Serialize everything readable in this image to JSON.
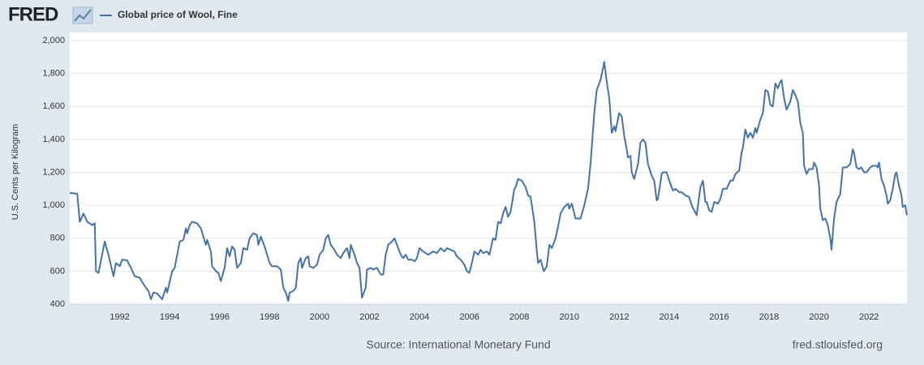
{
  "chart_data": {
    "type": "line",
    "logo": "FRED",
    "ylabel": "U.S. Cents per Kilogram",
    "source": "Source: International Monetary Fund",
    "credit": "fred.stlouisfed.org",
    "grid": true,
    "xlim": [
      1990,
      2023.52
    ],
    "ylim": [
      400,
      2000
    ],
    "xticks": [
      1992,
      1994,
      1996,
      1998,
      2000,
      2002,
      2004,
      2006,
      2008,
      2010,
      2012,
      2014,
      2016,
      2018,
      2020,
      2022
    ],
    "yticks": [
      400,
      600,
      800,
      {
        "value": 1000,
        "label": "1,000"
      },
      {
        "value": 1200,
        "label": "1,200"
      },
      {
        "value": 1400,
        "label": "1,400"
      },
      {
        "value": 1600,
        "label": "1,600"
      },
      {
        "value": 1800,
        "label": "1,800"
      },
      {
        "value": 2000,
        "label": "2,000"
      }
    ],
    "x": [
      1990.0,
      1990.3,
      1990.4,
      1990.55,
      1990.7,
      1990.9,
      1991.0,
      1991.05,
      1991.15,
      1991.4,
      1991.55,
      1991.75,
      1991.85,
      1992.0,
      1992.1,
      1992.3,
      1992.45,
      1992.6,
      1992.8,
      1993.0,
      1993.15,
      1993.25,
      1993.35,
      1993.5,
      1993.7,
      1993.85,
      1993.9,
      1994.1,
      1994.2,
      1994.3,
      1994.4,
      1994.55,
      1994.65,
      1994.7,
      1994.8,
      1994.9,
      1995.1,
      1995.25,
      1995.45,
      1995.5,
      1995.65,
      1995.7,
      1995.85,
      1995.95,
      1996.05,
      1996.2,
      1996.3,
      1996.4,
      1996.5,
      1996.6,
      1996.7,
      1996.85,
      1996.95,
      1997.1,
      1997.2,
      1997.35,
      1997.5,
      1997.55,
      1997.65,
      1997.8,
      1998.0,
      1998.1,
      1998.3,
      1998.45,
      1998.55,
      1998.65,
      1998.75,
      1998.8,
      1998.95,
      1999.05,
      1999.15,
      1999.25,
      1999.3,
      1999.45,
      1999.55,
      1999.6,
      1999.75,
      1999.9,
      2000.0,
      2000.15,
      2000.25,
      2000.35,
      2000.45,
      2000.6,
      2000.7,
      2000.85,
      2000.95,
      2001.1,
      2001.2,
      2001.25,
      2001.4,
      2001.5,
      2001.6,
      2001.7,
      2001.85,
      2001.9,
      2002.05,
      2002.15,
      2002.3,
      2002.45,
      2002.55,
      2002.65,
      2002.75,
      2002.9,
      2003.0,
      2003.1,
      2003.25,
      2003.35,
      2003.45,
      2003.55,
      2003.7,
      2003.8,
      2003.9,
      2004.0,
      2004.15,
      2004.35,
      2004.55,
      2004.7,
      2004.85,
      2005.0,
      2005.1,
      2005.25,
      2005.4,
      2005.5,
      2005.65,
      2005.8,
      2005.9,
      2006.0,
      2006.1,
      2006.2,
      2006.35,
      2006.45,
      2006.55,
      2006.7,
      2006.8,
      2006.95,
      2007.05,
      2007.15,
      2007.25,
      2007.35,
      2007.45,
      2007.55,
      2007.65,
      2007.8,
      2007.85,
      2007.95,
      2008.1,
      2008.25,
      2008.35,
      2008.45,
      2008.55,
      2008.6,
      2008.7,
      2008.75,
      2008.85,
      2008.98,
      2009.1,
      2009.2,
      2009.3,
      2009.45,
      2009.55,
      2009.65,
      2009.8,
      2009.95,
      2010.0,
      2010.1,
      2010.2,
      2010.25,
      2010.45,
      2010.6,
      2010.75,
      2010.85,
      2011.0,
      2011.1,
      2011.25,
      2011.4,
      2011.5,
      2011.6,
      2011.7,
      2011.8,
      2011.85,
      2012.0,
      2012.1,
      2012.2,
      2012.3,
      2012.35,
      2012.45,
      2012.5,
      2012.6,
      2012.75,
      2012.85,
      2012.95,
      2013.05,
      2013.15,
      2013.3,
      2013.4,
      2013.5,
      2013.55,
      2013.7,
      2013.75,
      2013.9,
      2014.0,
      2014.15,
      2014.25,
      2014.4,
      2014.5,
      2014.65,
      2014.8,
      2014.9,
      2015.0,
      2015.1,
      2015.25,
      2015.35,
      2015.45,
      2015.5,
      2015.6,
      2015.7,
      2015.8,
      2015.95,
      2016.05,
      2016.15,
      2016.3,
      2016.45,
      2016.55,
      2016.65,
      2016.8,
      2016.9,
      2016.95,
      2017.05,
      2017.15,
      2017.25,
      2017.35,
      2017.45,
      2017.5,
      2017.65,
      2017.75,
      2017.85,
      2017.95,
      2018.05,
      2018.15,
      2018.25,
      2018.35,
      2018.45,
      2018.5,
      2018.6,
      2018.7,
      2018.85,
      2018.95,
      2019.05,
      2019.15,
      2019.25,
      2019.35,
      2019.4,
      2019.5,
      2019.6,
      2019.75,
      2019.8,
      2019.9,
      2020.0,
      2020.05,
      2020.15,
      2020.25,
      2020.35,
      2020.45,
      2020.5,
      2020.6,
      2020.7,
      2020.85,
      2020.95,
      2021.1,
      2021.25,
      2021.35,
      2021.4,
      2021.5,
      2021.6,
      2021.7,
      2021.8,
      2021.9,
      2022.05,
      2022.15,
      2022.3,
      2022.35,
      2022.4,
      2022.5,
      2022.6,
      2022.7,
      2022.75,
      2022.85,
      2022.95,
      2023.05,
      2023.1,
      2023.2,
      2023.3,
      2023.35,
      2023.45,
      2023.52
    ],
    "series": [
      {
        "name": "Global price of Wool, Fine",
        "color": "#4572a7",
        "values": [
          1075,
          1070,
          900,
          950,
          900,
          880,
          890,
          600,
          590,
          780,
          700,
          570,
          650,
          630,
          670,
          665,
          620,
          570,
          560,
          510,
          480,
          430,
          470,
          465,
          430,
          500,
          470,
          600,
          620,
          700,
          780,
          790,
          860,
          830,
          880,
          900,
          890,
          860,
          760,
          790,
          720,
          630,
          600,
          590,
          540,
          620,
          740,
          690,
          750,
          730,
          620,
          650,
          740,
          730,
          800,
          830,
          820,
          760,
          810,
          750,
          650,
          630,
          630,
          610,
          500,
          470,
          420,
          470,
          480,
          500,
          650,
          680,
          620,
          680,
          690,
          630,
          620,
          640,
          700,
          730,
          800,
          820,
          760,
          730,
          700,
          680,
          710,
          740,
          680,
          760,
          700,
          650,
          620,
          440,
          500,
          610,
          620,
          610,
          620,
          580,
          580,
          700,
          760,
          780,
          800,
          760,
          700,
          680,
          700,
          670,
          670,
          660,
          680,
          740,
          720,
          700,
          720,
          710,
          740,
          720,
          740,
          730,
          720,
          690,
          670,
          640,
          600,
          590,
          650,
          720,
          700,
          730,
          710,
          720,
          700,
          800,
          790,
          900,
          890,
          950,
          990,
          930,
          960,
          1100,
          1110,
          1160,
          1150,
          1110,
          1060,
          1050,
          950,
          900,
          720,
          650,
          670,
          600,
          630,
          760,
          740,
          800,
          870,
          950,
          990,
          1010,
          980,
          1010,
          950,
          920,
          920,
          1000,
          1100,
          1250,
          1560,
          1700,
          1760,
          1870,
          1750,
          1650,
          1440,
          1480,
          1450,
          1560,
          1540,
          1420,
          1340,
          1290,
          1300,
          1200,
          1160,
          1250,
          1380,
          1400,
          1380,
          1250,
          1180,
          1150,
          1030,
          1040,
          1190,
          1200,
          1200,
          1150,
          1090,
          1100,
          1080,
          1080,
          1060,
          1050,
          1000,
          970,
          940,
          1110,
          1150,
          1020,
          1020,
          970,
          960,
          1020,
          1010,
          1040,
          1100,
          1100,
          1150,
          1150,
          1190,
          1210,
          1320,
          1350,
          1460,
          1410,
          1440,
          1410,
          1470,
          1440,
          1520,
          1560,
          1700,
          1690,
          1610,
          1600,
          1740,
          1710,
          1750,
          1760,
          1650,
          1580,
          1630,
          1700,
          1670,
          1630,
          1500,
          1440,
          1240,
          1190,
          1220,
          1220,
          1260,
          1230,
          1120,
          980,
          910,
          920,
          880,
          800,
          730,
          920,
          1020,
          1070,
          1230,
          1230,
          1250,
          1340,
          1320,
          1230,
          1220,
          1230,
          1200,
          1200,
          1230,
          1240,
          1240,
          1230,
          1260,
          1160,
          1120,
          1060,
          1010,
          1030,
          1100,
          1190,
          1200,
          1120,
          1060,
          990,
          1000,
          940
        ]
      }
    ]
  }
}
